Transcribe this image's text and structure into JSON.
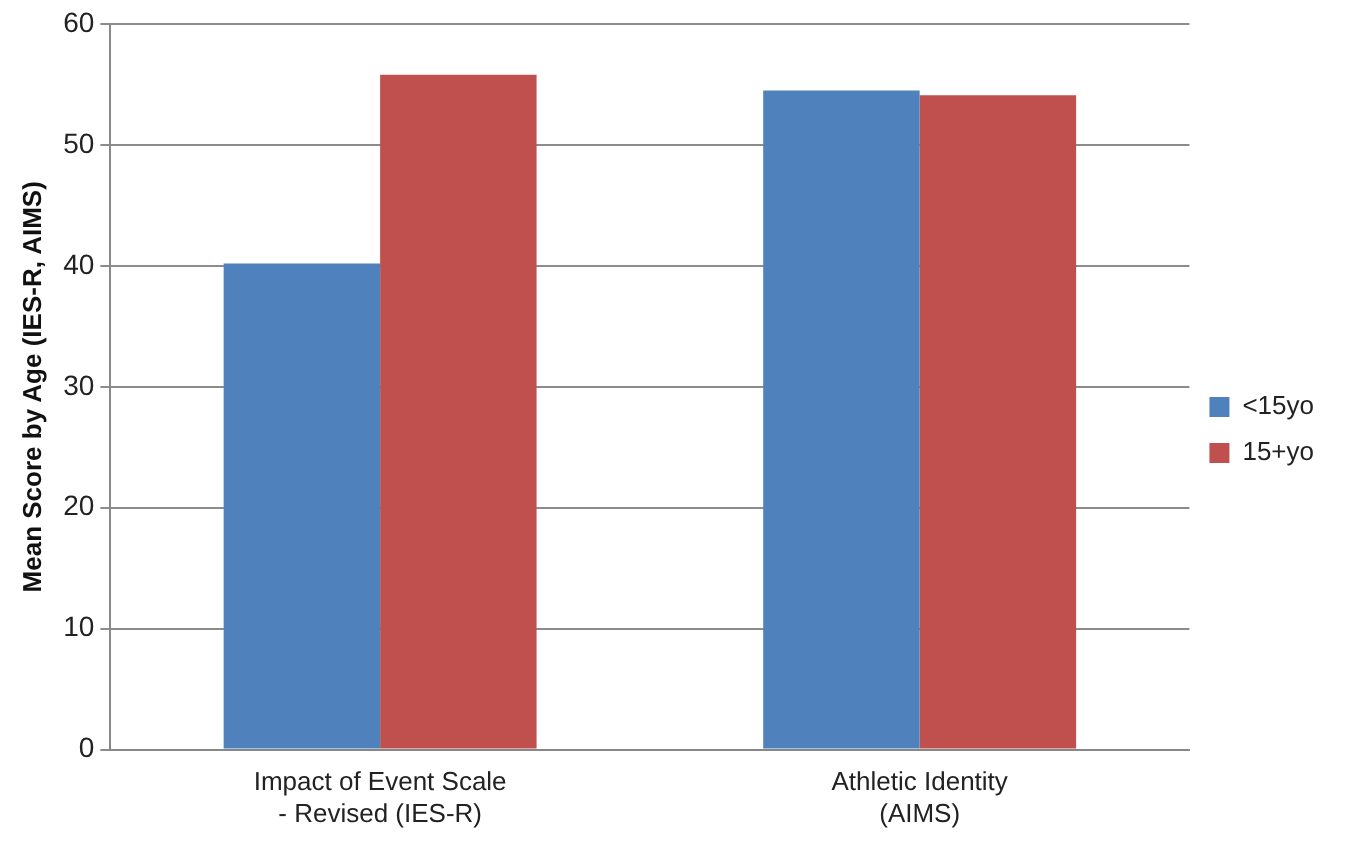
{
  "chart_data": {
    "type": "bar",
    "ylabel": "Mean Score by Age (IES-R, AIMS)",
    "categories": [
      "Impact of Event Scale - Revised (IES-R)",
      "Athletic Identity (AIMS)"
    ],
    "series": [
      {
        "name": "<15yo",
        "color": "#4f81bd",
        "values": [
          40.2,
          54.5
        ]
      },
      {
        "name": "15+yo",
        "color": "#c0504d",
        "values": [
          55.8,
          54.1
        ]
      }
    ],
    "ylim": [
      0,
      60
    ],
    "yticks": [
      0,
      10,
      20,
      30,
      40,
      50,
      60
    ],
    "grid": "y",
    "legend": "right"
  }
}
